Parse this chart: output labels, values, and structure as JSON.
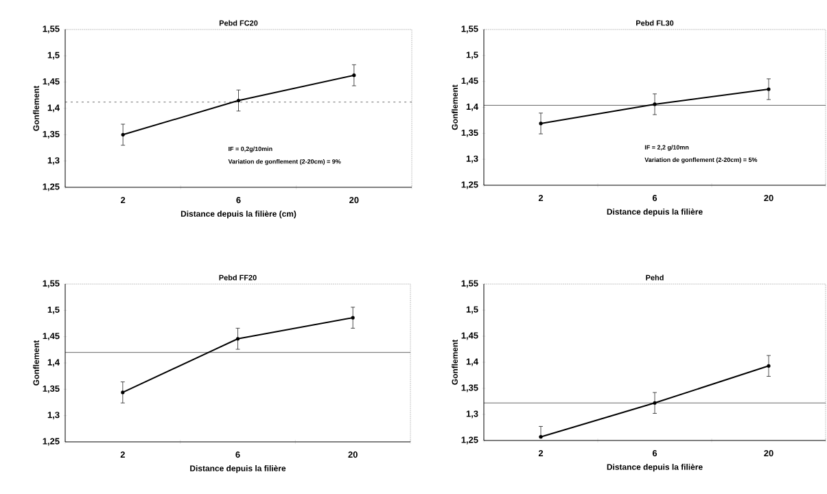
{
  "chart_data": [
    {
      "type": "line",
      "title": "Pebd  FC20",
      "xlabel": "Distance depuis la filière (cm)",
      "ylabel": "Gonflement",
      "categories": [
        "2",
        "6",
        "20"
      ],
      "values": [
        1.35,
        1.415,
        1.463
      ],
      "errors": [
        0.02,
        0.02,
        0.02
      ],
      "color": "#000000",
      "marker": "circle",
      "ylim": [
        1.25,
        1.55
      ],
      "yticks": [
        {
          "value": 1.25,
          "label": "1,25"
        },
        {
          "value": 1.3,
          "label": "1,3"
        },
        {
          "value": 1.35,
          "label": "1,35"
        },
        {
          "value": 1.4,
          "label": "1,4"
        },
        {
          "value": 1.45,
          "label": "1,45"
        },
        {
          "value": 1.5,
          "label": "1,5"
        },
        {
          "value": 1.55,
          "label": "1,55"
        }
      ],
      "ref_lines": [
        {
          "axis": "y",
          "value": 1.412,
          "line_style": "dashed"
        }
      ],
      "annotations": [
        "IF = 0,2g/10min",
        "Variation de gonflement (2-20cm) = 9%"
      ]
    },
    {
      "type": "line",
      "title": "Pebd  FL30",
      "xlabel": "Distance depuis la filière",
      "ylabel": "Gonflement",
      "categories": [
        "2",
        "6",
        "20"
      ],
      "values": [
        1.369,
        1.406,
        1.435
      ],
      "errors": [
        0.02,
        0.02,
        0.02
      ],
      "color": "#000000",
      "marker": "circle",
      "ylim": [
        1.25,
        1.55
      ],
      "yticks": [
        {
          "value": 1.25,
          "label": "1,25"
        },
        {
          "value": 1.3,
          "label": "1,3"
        },
        {
          "value": 1.35,
          "label": "1,35"
        },
        {
          "value": 1.4,
          "label": "1,4"
        },
        {
          "value": 1.45,
          "label": "1,45"
        },
        {
          "value": 1.5,
          "label": "1,5"
        },
        {
          "value": 1.55,
          "label": "1,55"
        }
      ],
      "ref_lines": [
        {
          "axis": "y",
          "value": 1.404,
          "line_style": "solid"
        }
      ],
      "annotations": [
        "IF = 2,2 g/10mn",
        "Variation de gonflement (2-20cm) = 5%"
      ]
    },
    {
      "type": "line",
      "title": "Pebd  FF20",
      "xlabel": "Distance depuis la filière",
      "ylabel": "Gonflement",
      "categories": [
        "2",
        "6",
        "20"
      ],
      "values": [
        1.344,
        1.446,
        1.486
      ],
      "errors": [
        0.02,
        0.02,
        0.02
      ],
      "color": "#000000",
      "marker": "circle",
      "ylim": [
        1.25,
        1.55
      ],
      "yticks": [
        {
          "value": 1.25,
          "label": "1,25"
        },
        {
          "value": 1.3,
          "label": "1,3"
        },
        {
          "value": 1.35,
          "label": "1,35"
        },
        {
          "value": 1.4,
          "label": "1,4"
        },
        {
          "value": 1.45,
          "label": "1,45"
        },
        {
          "value": 1.5,
          "label": "1,5"
        },
        {
          "value": 1.55,
          "label": "1,55"
        }
      ],
      "ref_lines": [
        {
          "axis": "y",
          "value": 1.42,
          "line_style": "solid"
        }
      ]
    },
    {
      "type": "line",
      "title": "Pehd",
      "xlabel": "Distance depuis la filière",
      "ylabel": "Gonflement",
      "categories": [
        "2",
        "6",
        "20"
      ],
      "values": [
        1.257,
        1.322,
        1.393
      ],
      "errors": [
        [
          1.257,
          1.277
        ],
        0.02,
        0.02
      ],
      "color": "#000000",
      "marker": "circle",
      "ylim": [
        1.25,
        1.55
      ],
      "yticks": [
        {
          "value": 1.25,
          "label": "1,25"
        },
        {
          "value": 1.3,
          "label": "1,3"
        },
        {
          "value": 1.35,
          "label": "1,35"
        },
        {
          "value": 1.4,
          "label": "1,4"
        },
        {
          "value": 1.45,
          "label": "1,45"
        },
        {
          "value": 1.5,
          "label": "1,5"
        },
        {
          "value": 1.55,
          "label": "1,55"
        }
      ],
      "ref_lines": [
        {
          "axis": "y",
          "value": 1.322,
          "line_style": "solid"
        }
      ]
    }
  ]
}
